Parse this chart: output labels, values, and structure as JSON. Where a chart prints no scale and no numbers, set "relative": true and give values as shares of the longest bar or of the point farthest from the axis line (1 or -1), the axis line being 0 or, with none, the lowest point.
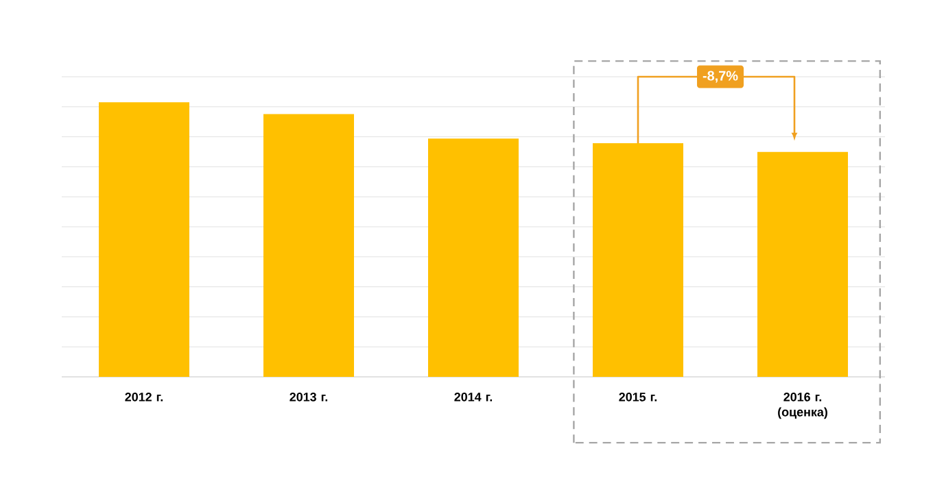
{
  "chart_data": {
    "type": "bar",
    "relative": true,
    "grid": "y",
    "color": "#ffc000",
    "categories": [
      "2012 г.",
      "2013 г.",
      "2014 г.",
      "2015 г.",
      "2016 г. (оценка)"
    ],
    "values": [
      1,
      0.957,
      0.868,
      0.851,
      0.819
    ],
    "annotations": [
      "-8,7%"
    ]
  }
}
